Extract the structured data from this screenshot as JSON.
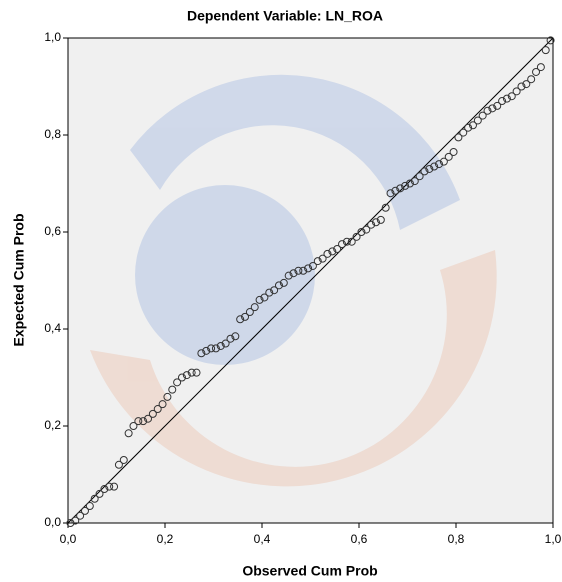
{
  "chart_data": {
    "type": "scatter",
    "title": "Dependent Variable: LN_ROA",
    "x_label": "Observed Cum Prob",
    "y_label": "Expected Cum Prob",
    "xlim": [
      0,
      1
    ],
    "ylim": [
      0,
      1
    ],
    "xticks": [
      {
        "value": 0,
        "label": "0,0"
      },
      {
        "value": 0.2,
        "label": "0,2"
      },
      {
        "value": 0.4,
        "label": "0,4"
      },
      {
        "value": 0.6,
        "label": "0,6"
      },
      {
        "value": 0.8,
        "label": "0,8"
      },
      {
        "value": 1,
        "label": "1,0"
      }
    ],
    "yticks": [
      {
        "value": 0,
        "label": "0,0"
      },
      {
        "value": 0.2,
        "label": "0,2"
      },
      {
        "value": 0.4,
        "label": "0,4"
      },
      {
        "value": 0.6,
        "label": "0,6"
      },
      {
        "value": 0.8,
        "label": "0,8"
      },
      {
        "value": 1,
        "label": "1,0"
      }
    ],
    "reference_line": true,
    "color": "#333333",
    "x": [
      0.005,
      0.015,
      0.025,
      0.035,
      0.045,
      0.055,
      0.065,
      0.075,
      0.085,
      0.095,
      0.105,
      0.115,
      0.125,
      0.135,
      0.145,
      0.155,
      0.165,
      0.175,
      0.185,
      0.195,
      0.205,
      0.215,
      0.225,
      0.235,
      0.245,
      0.255,
      0.265,
      0.275,
      0.285,
      0.295,
      0.305,
      0.315,
      0.325,
      0.335,
      0.345,
      0.355,
      0.365,
      0.375,
      0.385,
      0.395,
      0.405,
      0.415,
      0.425,
      0.435,
      0.445,
      0.455,
      0.465,
      0.475,
      0.485,
      0.495,
      0.505,
      0.515,
      0.525,
      0.535,
      0.545,
      0.555,
      0.565,
      0.575,
      0.585,
      0.595,
      0.605,
      0.615,
      0.625,
      0.635,
      0.645,
      0.655,
      0.665,
      0.675,
      0.685,
      0.695,
      0.705,
      0.715,
      0.725,
      0.735,
      0.745,
      0.755,
      0.765,
      0.775,
      0.785,
      0.795,
      0.805,
      0.815,
      0.825,
      0.835,
      0.845,
      0.855,
      0.865,
      0.875,
      0.885,
      0.895,
      0.905,
      0.915,
      0.925,
      0.935,
      0.945,
      0.955,
      0.965,
      0.975,
      0.985,
      0.995
    ],
    "values": [
      0.0,
      0.005,
      0.015,
      0.025,
      0.035,
      0.05,
      0.06,
      0.07,
      0.075,
      0.075,
      0.12,
      0.13,
      0.185,
      0.2,
      0.21,
      0.21,
      0.215,
      0.225,
      0.235,
      0.245,
      0.26,
      0.275,
      0.29,
      0.3,
      0.305,
      0.31,
      0.31,
      0.35,
      0.355,
      0.36,
      0.36,
      0.365,
      0.37,
      0.38,
      0.385,
      0.42,
      0.425,
      0.435,
      0.445,
      0.46,
      0.465,
      0.475,
      0.48,
      0.49,
      0.495,
      0.51,
      0.515,
      0.52,
      0.52,
      0.525,
      0.53,
      0.54,
      0.545,
      0.555,
      0.56,
      0.565,
      0.575,
      0.58,
      0.58,
      0.59,
      0.6,
      0.605,
      0.615,
      0.62,
      0.625,
      0.65,
      0.68,
      0.685,
      0.69,
      0.695,
      0.7,
      0.705,
      0.715,
      0.725,
      0.73,
      0.735,
      0.74,
      0.745,
      0.755,
      0.765,
      0.795,
      0.805,
      0.815,
      0.82,
      0.83,
      0.84,
      0.85,
      0.855,
      0.86,
      0.87,
      0.875,
      0.88,
      0.89,
      0.9,
      0.905,
      0.915,
      0.93,
      0.94,
      0.975,
      0.995
    ]
  }
}
